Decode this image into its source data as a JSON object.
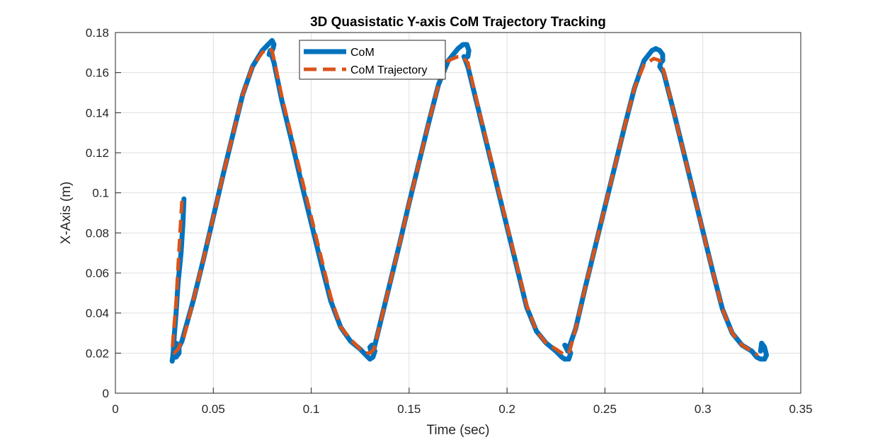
{
  "chart_data": {
    "type": "line",
    "title": "3D Quasistatic Y-axis CoM Trajectory Tracking",
    "xlabel": "Time (sec)",
    "ylabel": "X-Axis (m)",
    "xlim": [
      0,
      0.35
    ],
    "ylim": [
      0,
      0.18
    ],
    "xticks": [
      0,
      0.05,
      0.1,
      0.15,
      0.2,
      0.25,
      0.3,
      0.35
    ],
    "xtick_labels": [
      "0",
      "0.05",
      "0.1",
      "0.15",
      "0.2",
      "0.25",
      "0.3",
      "0.35"
    ],
    "yticks": [
      0,
      0.02,
      0.04,
      0.06,
      0.08,
      0.1,
      0.12,
      0.14,
      0.16,
      0.18
    ],
    "ytick_labels": [
      "0",
      "0.02",
      "0.04",
      "0.06",
      "0.08",
      "0.1",
      "0.12",
      "0.14",
      "0.16",
      "0.18"
    ],
    "grid": true,
    "legend_position": "top-center",
    "series": [
      {
        "name": "CoM",
        "color": "#0072BD",
        "style": "solid",
        "x": [
          0.035,
          0.0345,
          0.0335,
          0.032,
          0.031,
          0.03,
          0.0295,
          0.029,
          0.0295,
          0.031,
          0.0325,
          0.0325,
          0.031,
          0.03,
          0.0305,
          0.032,
          0.034,
          0.04,
          0.045,
          0.05,
          0.055,
          0.06,
          0.065,
          0.07,
          0.075,
          0.078,
          0.08,
          0.081,
          0.0805,
          0.0795,
          0.0785,
          0.079,
          0.081,
          0.085,
          0.09,
          0.095,
          0.1,
          0.105,
          0.11,
          0.115,
          0.12,
          0.125,
          0.128,
          0.13,
          0.1315,
          0.1325,
          0.131,
          0.13,
          0.1305,
          0.132,
          0.135,
          0.14,
          0.145,
          0.15,
          0.155,
          0.16,
          0.165,
          0.17,
          0.175,
          0.1775,
          0.1795,
          0.1805,
          0.18,
          0.1785,
          0.178,
          0.18,
          0.185,
          0.19,
          0.195,
          0.2,
          0.205,
          0.21,
          0.215,
          0.22,
          0.225,
          0.228,
          0.2295,
          0.2315,
          0.2325,
          0.231,
          0.2295,
          0.231,
          0.235,
          0.24,
          0.245,
          0.25,
          0.255,
          0.26,
          0.265,
          0.27,
          0.274,
          0.276,
          0.278,
          0.2795,
          0.2795,
          0.2785,
          0.278,
          0.28,
          0.285,
          0.29,
          0.295,
          0.3,
          0.305,
          0.31,
          0.315,
          0.32,
          0.325,
          0.3275,
          0.3295,
          0.3315,
          0.3325,
          0.3315,
          0.33,
          0.3295
        ],
        "y": [
          0.097,
          0.085,
          0.07,
          0.055,
          0.04,
          0.028,
          0.02,
          0.016,
          0.018,
          0.018,
          0.02,
          0.023,
          0.025,
          0.024,
          0.021,
          0.022,
          0.026,
          0.047,
          0.067,
          0.088,
          0.109,
          0.129,
          0.149,
          0.163,
          0.171,
          0.174,
          0.176,
          0.174,
          0.172,
          0.17,
          0.169,
          0.171,
          0.165,
          0.146,
          0.126,
          0.105,
          0.085,
          0.065,
          0.046,
          0.033,
          0.026,
          0.022,
          0.019,
          0.017,
          0.018,
          0.021,
          0.024,
          0.023,
          0.021,
          0.022,
          0.034,
          0.054,
          0.074,
          0.095,
          0.115,
          0.135,
          0.154,
          0.166,
          0.172,
          0.174,
          0.174,
          0.171,
          0.168,
          0.167,
          0.168,
          0.163,
          0.143,
          0.123,
          0.103,
          0.083,
          0.063,
          0.043,
          0.031,
          0.025,
          0.021,
          0.018,
          0.017,
          0.017,
          0.02,
          0.023,
          0.024,
          0.021,
          0.032,
          0.053,
          0.073,
          0.093,
          0.113,
          0.133,
          0.152,
          0.166,
          0.171,
          0.172,
          0.171,
          0.169,
          0.166,
          0.165,
          0.163,
          0.16,
          0.141,
          0.121,
          0.101,
          0.081,
          0.061,
          0.042,
          0.03,
          0.024,
          0.021,
          0.018,
          0.017,
          0.017,
          0.019,
          0.023,
          0.025,
          0.021
        ]
      },
      {
        "name": "CoM Trajectory",
        "color": "#D95319",
        "style": "dashed",
        "x": [
          0.034,
          0.033,
          0.032,
          0.031,
          0.0295,
          0.029,
          0.03,
          0.032,
          0.035,
          0.04,
          0.045,
          0.05,
          0.055,
          0.06,
          0.065,
          0.07,
          0.075,
          0.078,
          0.08,
          0.085,
          0.09,
          0.095,
          0.1,
          0.105,
          0.11,
          0.115,
          0.12,
          0.125,
          0.128,
          0.13,
          0.132,
          0.135,
          0.14,
          0.145,
          0.15,
          0.155,
          0.16,
          0.165,
          0.17,
          0.175,
          0.177,
          0.18,
          0.185,
          0.19,
          0.195,
          0.2,
          0.205,
          0.21,
          0.215,
          0.22,
          0.225,
          0.228,
          0.23,
          0.232,
          0.235,
          0.24,
          0.245,
          0.25,
          0.255,
          0.26,
          0.265,
          0.27,
          0.275,
          0.278,
          0.28,
          0.285,
          0.29,
          0.295,
          0.3,
          0.305,
          0.31,
          0.315,
          0.32,
          0.325,
          0.328
        ],
        "y": [
          0.096,
          0.08,
          0.063,
          0.045,
          0.028,
          0.021,
          0.02,
          0.022,
          0.028,
          0.047,
          0.067,
          0.088,
          0.109,
          0.129,
          0.149,
          0.163,
          0.17,
          0.172,
          0.171,
          0.148,
          0.128,
          0.108,
          0.088,
          0.068,
          0.048,
          0.033,
          0.027,
          0.022,
          0.02,
          0.02,
          0.022,
          0.034,
          0.054,
          0.074,
          0.095,
          0.115,
          0.135,
          0.154,
          0.166,
          0.168,
          0.168,
          0.165,
          0.144,
          0.124,
          0.104,
          0.084,
          0.064,
          0.044,
          0.031,
          0.025,
          0.022,
          0.02,
          0.019,
          0.021,
          0.032,
          0.053,
          0.073,
          0.093,
          0.113,
          0.133,
          0.152,
          0.164,
          0.167,
          0.166,
          0.161,
          0.141,
          0.121,
          0.101,
          0.081,
          0.061,
          0.042,
          0.03,
          0.024,
          0.021,
          0.019
        ]
      }
    ]
  }
}
